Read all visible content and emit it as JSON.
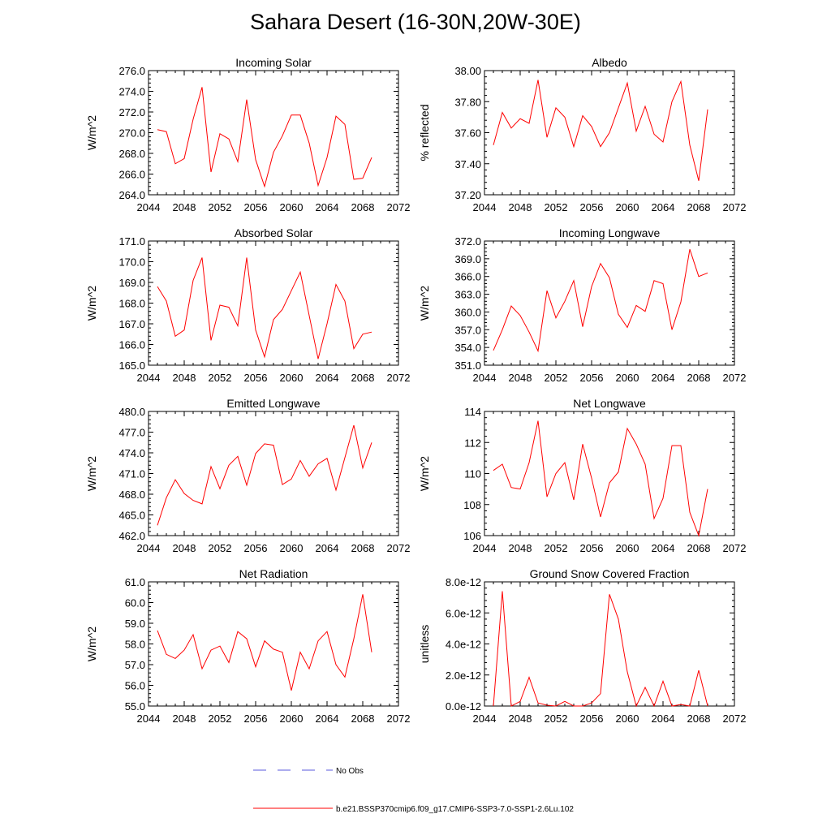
{
  "figure": {
    "title": "Sahara Desert (16-30N,20W-30E)"
  },
  "chart_data": [
    {
      "type": "line",
      "title": "Incoming Solar",
      "ylabel": "W/m^2",
      "xlim": [
        2044,
        2072
      ],
      "ylim": [
        264.0,
        276.0
      ],
      "xticks": [
        "2044",
        "2048",
        "2052",
        "2056",
        "2060",
        "2064",
        "2068",
        "2072"
      ],
      "yticks": [
        "264.0",
        "266.0",
        "268.0",
        "270.0",
        "272.0",
        "274.0",
        "276.0"
      ],
      "x": [
        2045,
        2046,
        2047,
        2048,
        2049,
        2050,
        2051,
        2052,
        2053,
        2054,
        2055,
        2056,
        2057,
        2058,
        2059,
        2060,
        2061,
        2062,
        2063,
        2064,
        2065,
        2066,
        2067,
        2068,
        2069
      ],
      "series": [
        {
          "values": [
            270.3,
            270.1,
            267.0,
            267.5,
            271.3,
            274.4,
            266.2,
            269.9,
            269.4,
            267.2,
            273.2,
            267.4,
            264.8,
            268.1,
            269.7,
            271.7,
            271.7,
            269.0,
            264.9,
            267.6,
            271.6,
            270.8,
            265.5,
            265.6,
            267.6
          ],
          "color": "#ff0000"
        }
      ]
    },
    {
      "type": "line",
      "title": "Albedo",
      "ylabel": "% reflected",
      "xlim": [
        2044,
        2072
      ],
      "ylim": [
        37.2,
        38.0
      ],
      "xticks": [
        "2044",
        "2048",
        "2052",
        "2056",
        "2060",
        "2064",
        "2068",
        "2072"
      ],
      "yticks": [
        "37.20",
        "37.40",
        "37.60",
        "37.80",
        "38.00"
      ],
      "x": [
        2045,
        2046,
        2047,
        2048,
        2049,
        2050,
        2051,
        2052,
        2053,
        2054,
        2055,
        2056,
        2057,
        2058,
        2059,
        2060,
        2061,
        2062,
        2063,
        2064,
        2065,
        2066,
        2067,
        2068,
        2069
      ],
      "series": [
        {
          "values": [
            37.52,
            37.73,
            37.63,
            37.69,
            37.66,
            37.94,
            37.57,
            37.76,
            37.7,
            37.51,
            37.71,
            37.64,
            37.51,
            37.6,
            37.76,
            37.92,
            37.61,
            37.77,
            37.59,
            37.54,
            37.8,
            37.93,
            37.52,
            37.29,
            37.75
          ],
          "color": "#ff0000"
        }
      ]
    },
    {
      "type": "line",
      "title": "Absorbed Solar",
      "ylabel": "W/m^2",
      "xlim": [
        2044,
        2072
      ],
      "ylim": [
        165.0,
        171.0
      ],
      "xticks": [
        "2044",
        "2048",
        "2052",
        "2056",
        "2060",
        "2064",
        "2068",
        "2072"
      ],
      "yticks": [
        "165.0",
        "166.0",
        "167.0",
        "168.0",
        "169.0",
        "170.0",
        "171.0"
      ],
      "x": [
        2045,
        2046,
        2047,
        2048,
        2049,
        2050,
        2051,
        2052,
        2053,
        2054,
        2055,
        2056,
        2057,
        2058,
        2059,
        2060,
        2061,
        2062,
        2063,
        2064,
        2065,
        2066,
        2067,
        2068,
        2069
      ],
      "series": [
        {
          "values": [
            168.8,
            168.1,
            166.4,
            166.7,
            169.1,
            170.2,
            166.2,
            167.9,
            167.8,
            166.9,
            170.2,
            166.7,
            165.4,
            167.2,
            167.7,
            168.6,
            169.5,
            167.4,
            165.3,
            167.0,
            168.9,
            168.1,
            165.8,
            166.5,
            166.6
          ],
          "color": "#ff0000"
        }
      ]
    },
    {
      "type": "line",
      "title": "Incoming Longwave",
      "ylabel": "W/m^2",
      "xlim": [
        2044,
        2072
      ],
      "ylim": [
        351.0,
        372.0
      ],
      "xticks": [
        "2044",
        "2048",
        "2052",
        "2056",
        "2060",
        "2064",
        "2068",
        "2072"
      ],
      "yticks": [
        "351.0",
        "354.0",
        "357.0",
        "360.0",
        "363.0",
        "366.0",
        "369.0",
        "372.0"
      ],
      "x": [
        2045,
        2046,
        2047,
        2048,
        2049,
        2050,
        2051,
        2052,
        2053,
        2054,
        2055,
        2056,
        2057,
        2058,
        2059,
        2060,
        2061,
        2062,
        2063,
        2064,
        2065,
        2066,
        2067,
        2068,
        2069
      ],
      "series": [
        {
          "values": [
            353.5,
            357.0,
            361.0,
            359.4,
            356.6,
            353.4,
            363.6,
            359.0,
            361.8,
            365.3,
            357.5,
            364.3,
            368.2,
            365.8,
            359.6,
            357.4,
            361.1,
            360.1,
            365.3,
            364.8,
            357.0,
            361.7,
            370.6,
            366.0,
            366.6
          ],
          "color": "#ff0000"
        }
      ]
    },
    {
      "type": "line",
      "title": "Emitted Longwave",
      "ylabel": "W/m^2",
      "xlim": [
        2044,
        2072
      ],
      "ylim": [
        462.0,
        480.0
      ],
      "xticks": [
        "2044",
        "2048",
        "2052",
        "2056",
        "2060",
        "2064",
        "2068",
        "2072"
      ],
      "yticks": [
        "462.0",
        "465.0",
        "468.0",
        "471.0",
        "474.0",
        "477.0",
        "480.0"
      ],
      "x": [
        2045,
        2046,
        2047,
        2048,
        2049,
        2050,
        2051,
        2052,
        2053,
        2054,
        2055,
        2056,
        2057,
        2058,
        2059,
        2060,
        2061,
        2062,
        2063,
        2064,
        2065,
        2066,
        2067,
        2068,
        2069
      ],
      "series": [
        {
          "values": [
            463.5,
            467.5,
            470.1,
            468.1,
            467.1,
            466.6,
            472.0,
            468.8,
            472.2,
            473.5,
            469.3,
            473.9,
            475.3,
            475.1,
            469.4,
            470.2,
            472.9,
            470.6,
            472.4,
            473.2,
            468.6,
            473.3,
            478.0,
            471.8,
            475.5
          ],
          "color": "#ff0000"
        }
      ]
    },
    {
      "type": "line",
      "title": "Net Longwave",
      "ylabel": "W/m^2",
      "xlim": [
        2044,
        2072
      ],
      "ylim": [
        106,
        114
      ],
      "xticks": [
        "2044",
        "2048",
        "2052",
        "2056",
        "2060",
        "2064",
        "2068",
        "2072"
      ],
      "yticks": [
        "106",
        "108",
        "110",
        "112",
        "114"
      ],
      "x": [
        2045,
        2046,
        2047,
        2048,
        2049,
        2050,
        2051,
        2052,
        2053,
        2054,
        2055,
        2056,
        2057,
        2058,
        2059,
        2060,
        2061,
        2062,
        2063,
        2064,
        2065,
        2066,
        2067,
        2068,
        2069
      ],
      "series": [
        {
          "values": [
            110.2,
            110.6,
            109.1,
            109.0,
            110.7,
            113.4,
            108.5,
            110.0,
            110.7,
            108.3,
            111.9,
            109.7,
            107.2,
            109.4,
            110.1,
            112.9,
            111.9,
            110.6,
            107.1,
            108.4,
            111.8,
            111.8,
            107.5,
            106.0,
            109.0
          ],
          "color": "#ff0000"
        }
      ]
    },
    {
      "type": "line",
      "title": "Net Radiation",
      "ylabel": "W/m^2",
      "xlim": [
        2044,
        2072
      ],
      "ylim": [
        55.0,
        61.0
      ],
      "xticks": [
        "2044",
        "2048",
        "2052",
        "2056",
        "2060",
        "2064",
        "2068",
        "2072"
      ],
      "yticks": [
        "55.0",
        "56.0",
        "57.0",
        "58.0",
        "59.0",
        "60.0",
        "61.0"
      ],
      "x": [
        2045,
        2046,
        2047,
        2048,
        2049,
        2050,
        2051,
        2052,
        2053,
        2054,
        2055,
        2056,
        2057,
        2058,
        2059,
        2060,
        2061,
        2062,
        2063,
        2064,
        2065,
        2066,
        2067,
        2068,
        2069
      ],
      "series": [
        {
          "values": [
            58.65,
            57.5,
            57.3,
            57.7,
            58.45,
            56.8,
            57.7,
            57.9,
            57.1,
            58.6,
            58.25,
            56.9,
            58.15,
            57.75,
            57.6,
            55.75,
            57.6,
            56.8,
            58.15,
            58.6,
            57.0,
            56.4,
            58.25,
            60.4,
            57.6
          ],
          "color": "#ff0000"
        }
      ]
    },
    {
      "type": "line",
      "title": "Ground Snow Covered Fraction",
      "ylabel": "unitless",
      "xlim": [
        2044,
        2072
      ],
      "ylim": [
        0.0,
        8e-12
      ],
      "xticks": [
        "2044",
        "2048",
        "2052",
        "2056",
        "2060",
        "2064",
        "2068",
        "2072"
      ],
      "yticks": [
        "0.0e-12",
        "2.0e-12",
        "4.0e-12",
        "6.0e-12",
        "8.0e-12"
      ],
      "x": [
        2045,
        2046,
        2047,
        2048,
        2049,
        2050,
        2051,
        2052,
        2053,
        2054,
        2055,
        2056,
        2057,
        2058,
        2059,
        2060,
        2061,
        2062,
        2063,
        2064,
        2065,
        2066,
        2067,
        2068,
        2069
      ],
      "series": [
        {
          "values": [
            0.0,
            7.4e-12,
            0.0,
            3e-13,
            1.85e-12,
            2e-13,
            5e-14,
            0.0,
            3e-13,
            0.0,
            0.0,
            2e-13,
            8e-13,
            7.2e-12,
            5.6e-12,
            2.2e-12,
            0.0,
            1.2e-12,
            0.0,
            1.6e-12,
            0.0,
            1e-13,
            0.0,
            2.3e-12,
            0.0
          ],
          "color": "#ff0000"
        }
      ]
    }
  ],
  "legend": {
    "items": [
      {
        "label": "No Obs",
        "color": "#5a5adc",
        "dash": "dashed"
      },
      {
        "label": "b.e21.BSSP370cmip6.f09_g17.CMIP6-SSP3-7.0-SSP1-2.6Lu.102",
        "color": "#ff0000",
        "dash": "solid"
      }
    ]
  }
}
